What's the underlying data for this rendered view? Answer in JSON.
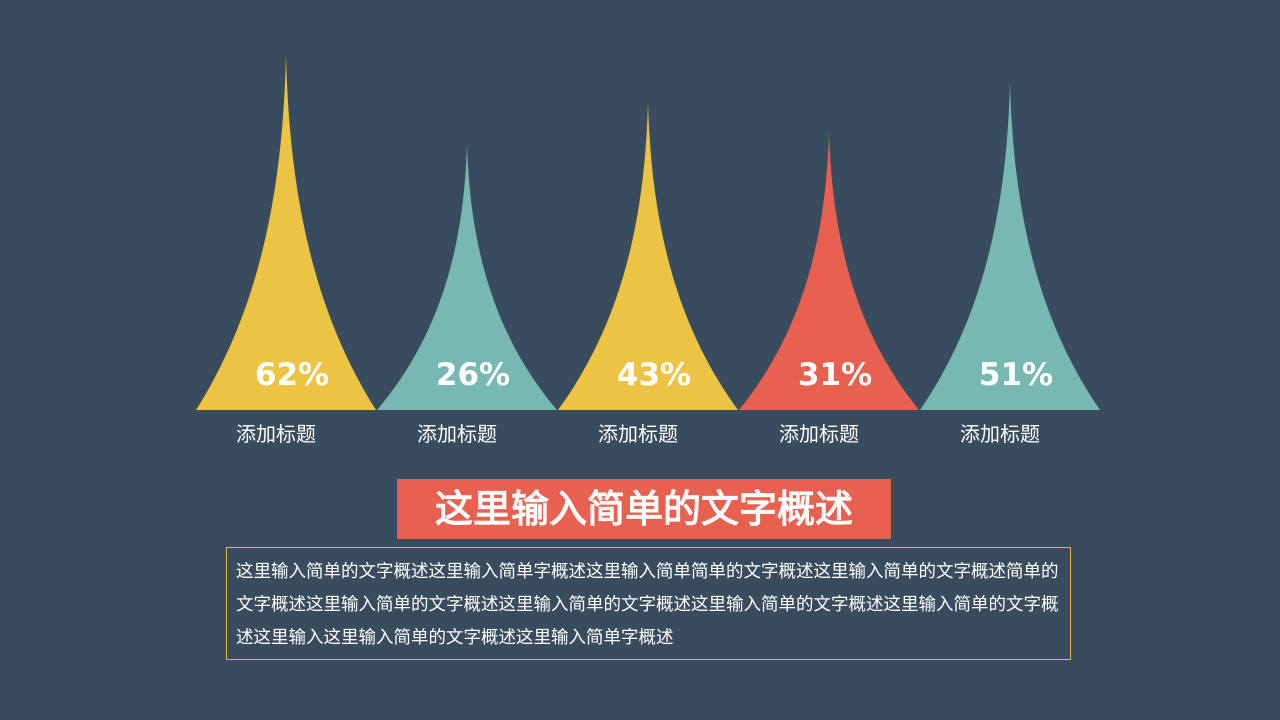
{
  "colors": {
    "background": "#394c5e",
    "yellow": "#edc343",
    "teal": "#77b9b2",
    "red": "#e8604f",
    "frame": "#e0b94a"
  },
  "chart_data": {
    "type": "bar",
    "categories": [
      "添加标题",
      "添加标题",
      "添加标题",
      "添加标题",
      "添加标题"
    ],
    "values": [
      62,
      26,
      43,
      31,
      51
    ],
    "value_labels": [
      "62%",
      "26%",
      "43%",
      "31%",
      "51%"
    ],
    "bar_colors": [
      "#edc343",
      "#77b9b2",
      "#edc343",
      "#e8604f",
      "#77b9b2"
    ],
    "title": "",
    "xlabel": "",
    "ylabel": "",
    "grid": false,
    "legend": "none"
  },
  "headline": "这里输入简单的文字概述",
  "body_text": "这里输入简单的文字概述这里输入简单字概述这里输入简单简单的文字概述这里输入简单的文字概述简单的文字概述这里输入简单的文字概述这里输入简单的文字概述这里输入简单的文字概述这里输入简单的文字概述这里输入这里输入简单的文字概述这里输入简单字概述"
}
